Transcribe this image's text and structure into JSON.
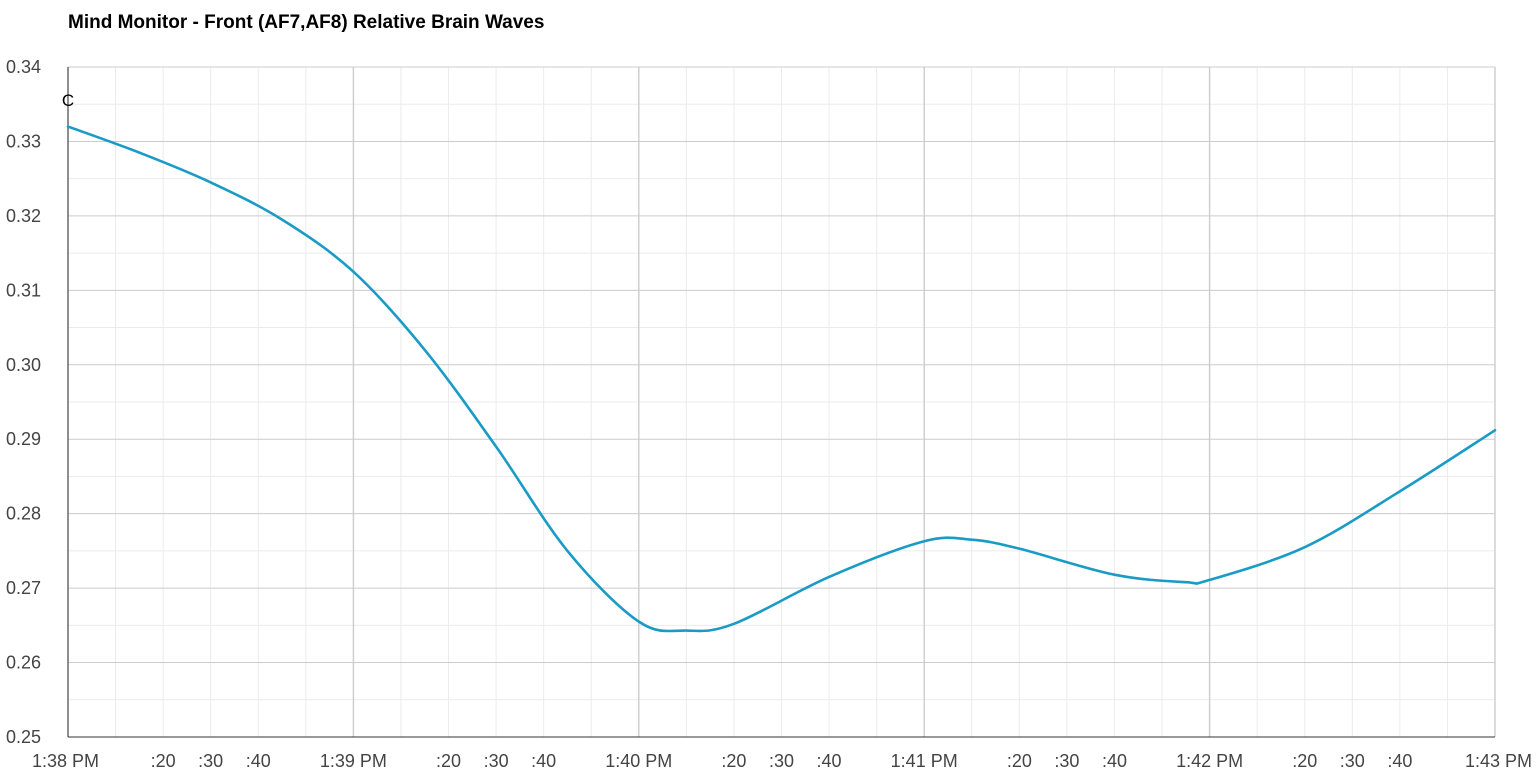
{
  "chart_data": {
    "type": "line",
    "title": "Mind Monitor - Front (AF7,AF8) Relative Brain Waves",
    "xlabel": "",
    "ylabel": "",
    "x_unit": "time (1:38 PM to 1:43 PM)",
    "xlim": [
      "1:38:00 PM",
      "1:43:00 PM"
    ],
    "ylim": [
      0.25,
      0.34
    ],
    "grid": true,
    "legend": "none",
    "y_ticks": [
      "0.25",
      "0.26",
      "0.27",
      "0.28",
      "0.29",
      "0.30",
      "0.31",
      "0.32",
      "0.33",
      "0.34"
    ],
    "x_ticks": [
      {
        "t": "1:38:00 PM",
        "label": "1:38 PM"
      },
      {
        "t": "1:38:20 PM",
        "label": ":20"
      },
      {
        "t": "1:38:30 PM",
        "label": ":30"
      },
      {
        "t": "1:38:40 PM",
        "label": ":40"
      },
      {
        "t": "1:39:00 PM",
        "label": "1:39 PM"
      },
      {
        "t": "1:39:20 PM",
        "label": ":20"
      },
      {
        "t": "1:39:30 PM",
        "label": ":30"
      },
      {
        "t": "1:39:40 PM",
        "label": ":40"
      },
      {
        "t": "1:40:00 PM",
        "label": "1:40 PM"
      },
      {
        "t": "1:40:20 PM",
        "label": ":20"
      },
      {
        "t": "1:40:30 PM",
        "label": ":30"
      },
      {
        "t": "1:40:40 PM",
        "label": ":40"
      },
      {
        "t": "1:41:00 PM",
        "label": "1:41 PM"
      },
      {
        "t": "1:41:20 PM",
        "label": ":20"
      },
      {
        "t": "1:41:30 PM",
        "label": ":30"
      },
      {
        "t": "1:41:40 PM",
        "label": ":40"
      },
      {
        "t": "1:42:00 PM",
        "label": "1:42 PM"
      },
      {
        "t": "1:42:20 PM",
        "label": ":20"
      },
      {
        "t": "1:42:30 PM",
        "label": ":30"
      },
      {
        "t": "1:42:40 PM",
        "label": ":40"
      },
      {
        "t": "1:43:00 PM",
        "label": "1:43 PM"
      }
    ],
    "series": [
      {
        "color": "#1a9bc6",
        "points": [
          {
            "x": "1:38:00 PM",
            "y": 0.332
          },
          {
            "x": "1:38:15 PM",
            "y": 0.3285
          },
          {
            "x": "1:38:30 PM",
            "y": 0.3245
          },
          {
            "x": "1:38:45 PM",
            "y": 0.3195
          },
          {
            "x": "1:39:00 PM",
            "y": 0.3125
          },
          {
            "x": "1:39:15 PM",
            "y": 0.302
          },
          {
            "x": "1:39:30 PM",
            "y": 0.289
          },
          {
            "x": "1:39:45 PM",
            "y": 0.275
          },
          {
            "x": "1:40:00 PM",
            "y": 0.2655
          },
          {
            "x": "1:40:10 PM",
            "y": 0.2643
          },
          {
            "x": "1:40:20 PM",
            "y": 0.2652
          },
          {
            "x": "1:40:40 PM",
            "y": 0.2715
          },
          {
            "x": "1:41:00 PM",
            "y": 0.2763
          },
          {
            "x": "1:41:10 PM",
            "y": 0.2765
          },
          {
            "x": "1:41:20 PM",
            "y": 0.2753
          },
          {
            "x": "1:41:40 PM",
            "y": 0.2718
          },
          {
            "x": "1:41:55 PM",
            "y": 0.2708
          },
          {
            "x": "1:42:00 PM",
            "y": 0.2711
          },
          {
            "x": "1:42:20 PM",
            "y": 0.2755
          },
          {
            "x": "1:42:40 PM",
            "y": 0.283
          },
          {
            "x": "1:43:00 PM",
            "y": 0.2912
          }
        ]
      }
    ],
    "annotations": [
      {
        "x": "1:38:00 PM",
        "label": "C"
      }
    ]
  },
  "colors": {
    "major_grid": "#cccccc",
    "minor_grid": "#ebebeb",
    "axis_line": "#333333",
    "tick_label": "#444444",
    "series": "#1a9bc6"
  }
}
